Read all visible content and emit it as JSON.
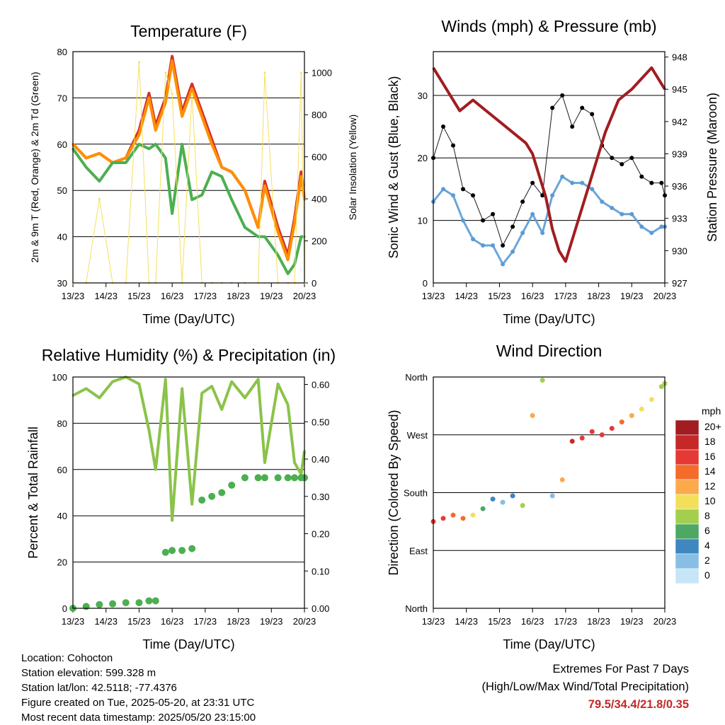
{
  "x_ticks": [
    "13/23",
    "14/23",
    "15/23",
    "16/23",
    "17/23",
    "18/23",
    "19/23",
    "20/23"
  ],
  "chart_data": [
    {
      "type": "line",
      "title": "Temperature (F)",
      "xlabel": "Time (Day/UTC)",
      "ylabel": "2m & 9m T (Red, Orange) & 2m Td (Green)",
      "ylabel_right": "Solar Insolation (Yellow)",
      "ylim": [
        30,
        80
      ],
      "y_ticks": [
        30,
        40,
        50,
        60,
        70,
        80
      ],
      "y2lim": [
        0,
        1100
      ],
      "y2_ticks": [
        0,
        200,
        400,
        600,
        800,
        1000
      ],
      "grid": true,
      "x_day": [
        0,
        0.4,
        0.8,
        1.2,
        1.6,
        2.0,
        2.3,
        2.5,
        2.8,
        3.0,
        3.3,
        3.6,
        3.9,
        4.2,
        4.5,
        4.8,
        5.2,
        5.6,
        5.8,
        6.2,
        6.5,
        6.7,
        6.9,
        7.0
      ],
      "series": [
        {
          "color": "#d32f2f",
          "y": [
            60,
            57,
            58,
            56,
            57,
            63,
            71,
            64,
            70,
            79,
            67,
            73,
            67,
            61,
            55,
            54,
            50,
            42,
            52,
            42,
            36,
            44,
            54,
            48
          ]
        },
        {
          "color": "#ff8f00",
          "y": [
            60,
            57,
            58,
            56,
            57,
            62,
            70,
            63,
            69,
            78,
            66,
            72,
            66,
            60,
            55,
            54,
            50,
            42,
            51,
            41,
            35,
            43,
            53,
            48
          ]
        },
        {
          "color": "#4caf50",
          "y": [
            59,
            55,
            52,
            56,
            56,
            60,
            59,
            60,
            57,
            45,
            60,
            48,
            49,
            54,
            53,
            48,
            42,
            40,
            40,
            36,
            32,
            34,
            40,
            40
          ]
        },
        {
          "color": "#f6e05e",
          "axis": "right",
          "y": [
            0,
            0,
            400,
            0,
            0,
            1050,
            0,
            0,
            1000,
            900,
            0,
            900,
            0,
            0,
            0,
            0,
            0,
            0,
            1000,
            0,
            0,
            0,
            1000,
            0
          ]
        }
      ]
    },
    {
      "type": "scatter",
      "title": "Winds (mph) & Pressure (mb)",
      "xlabel": "Time (Day/UTC)",
      "ylabel": "Sonic Wind & Gust (Blue, Black)",
      "ylabel_right": "Station Pressure (Maroon)",
      "ylim": [
        0,
        37
      ],
      "y_ticks": [
        0,
        10,
        20,
        30
      ],
      "y2lim": [
        927,
        948.5
      ],
      "y2_ticks": [
        927,
        930,
        933,
        936,
        939,
        942,
        945,
        948
      ],
      "grid": true,
      "series": [
        {
          "color": "#000000",
          "x": [
            0,
            0.3,
            0.6,
            0.9,
            1.2,
            1.5,
            1.8,
            2.1,
            2.4,
            2.7,
            3.0,
            3.3,
            3.6,
            3.9,
            4.2,
            4.5,
            4.8,
            5.1,
            5.4,
            5.7,
            6.0,
            6.3,
            6.6,
            6.9,
            7.0
          ],
          "y": [
            20,
            25,
            22,
            15,
            14,
            10,
            11,
            6,
            9,
            13,
            16,
            14,
            28,
            30,
            25,
            28,
            27,
            22,
            20,
            19,
            20,
            17,
            16,
            16,
            14
          ]
        },
        {
          "color": "#5a9bd5",
          "x": [
            0,
            0.3,
            0.6,
            0.9,
            1.2,
            1.5,
            1.8,
            2.1,
            2.4,
            2.7,
            3.0,
            3.3,
            3.6,
            3.9,
            4.2,
            4.5,
            4.8,
            5.1,
            5.4,
            5.7,
            6.0,
            6.3,
            6.6,
            6.9,
            7.0
          ],
          "y": [
            13,
            15,
            14,
            10,
            7,
            6,
            6,
            3,
            5,
            8,
            11,
            8,
            14,
            17,
            16,
            16,
            15,
            13,
            12,
            11,
            11,
            9,
            8,
            9,
            9
          ]
        },
        {
          "color": "#a11d21",
          "axis": "right",
          "x": [
            0,
            0.4,
            0.8,
            1.2,
            1.6,
            2.0,
            2.4,
            2.8,
            3.0,
            3.2,
            3.4,
            3.6,
            3.8,
            4.0,
            4.3,
            4.6,
            4.9,
            5.2,
            5.6,
            6.0,
            6.3,
            6.6,
            6.8,
            7.0
          ],
          "y": [
            947,
            945,
            943,
            944,
            943,
            942,
            941,
            940,
            939,
            937,
            935,
            932,
            930,
            929,
            932,
            935,
            938,
            941,
            944,
            945,
            946,
            947,
            946,
            945
          ]
        }
      ]
    },
    {
      "type": "line",
      "title": "Relative Humidity (%) & Precipitation (in)",
      "xlabel": "Time (Day/UTC)",
      "ylabel": "Percent & Total Rainfall",
      "ylim": [
        0,
        100
      ],
      "y_ticks": [
        0,
        20,
        40,
        60,
        80,
        100
      ],
      "y2lim": [
        0,
        0.62
      ],
      "y2_ticks": [
        "0.00",
        "0.10",
        "0.20",
        "0.30",
        "0.40",
        "0.50",
        "0.60"
      ],
      "grid": true,
      "x_day": [
        0,
        0.4,
        0.8,
        1.2,
        1.6,
        2.0,
        2.3,
        2.5,
        2.8,
        3.0,
        3.3,
        3.6,
        3.9,
        4.2,
        4.5,
        4.8,
        5.2,
        5.6,
        5.8,
        6.2,
        6.5,
        6.7,
        6.9,
        7.0
      ],
      "series": [
        {
          "color": "#8bc34a",
          "y": [
            92,
            95,
            91,
            98,
            100,
            97,
            77,
            60,
            99,
            38,
            95,
            45,
            93,
            96,
            86,
            98,
            91,
            99,
            63,
            97,
            88,
            63,
            58,
            68
          ]
        },
        {
          "color": "#4caf50",
          "axis": "right",
          "y": [
            0,
            0.005,
            0.01,
            0.012,
            0.015,
            0.015,
            0.02,
            0.02,
            0.15,
            0.155,
            0.155,
            0.16,
            0.29,
            0.3,
            0.31,
            0.33,
            0.35,
            0.35,
            0.35,
            0.35,
            0.35,
            0.35,
            0.35,
            0.35
          ]
        }
      ]
    },
    {
      "type": "scatter",
      "title": "Wind Direction",
      "xlabel": "Time (Day/UTC)",
      "ylabel": "Direction (Colored By Speed)",
      "ylim": [
        0,
        360
      ],
      "y_ticks": [
        {
          "v": 0,
          "label": "North"
        },
        {
          "v": 90,
          "label": "East"
        },
        {
          "v": 180,
          "label": "South"
        },
        {
          "v": 270,
          "label": "West"
        },
        {
          "v": 360,
          "label": "North"
        }
      ],
      "grid": true,
      "x": [
        0,
        0.3,
        0.6,
        0.9,
        1.2,
        1.5,
        1.8,
        2.1,
        2.4,
        2.7,
        3.0,
        3.3,
        3.6,
        3.9,
        4.2,
        4.5,
        4.8,
        5.1,
        5.4,
        5.7,
        6.0,
        6.3,
        6.6,
        6.9,
        7.0
      ],
      "y": [
        135,
        140,
        145,
        140,
        145,
        155,
        170,
        165,
        175,
        160,
        300,
        355,
        175,
        200,
        260,
        265,
        275,
        270,
        280,
        290,
        300,
        310,
        325,
        345,
        350
      ],
      "speed": [
        17,
        16,
        14,
        15,
        10,
        6,
        4,
        3,
        4,
        8,
        12,
        8,
        3,
        12,
        18,
        17,
        16,
        16,
        16,
        15,
        12,
        11,
        10,
        8,
        8
      ],
      "legend": {
        "title": "mph",
        "labels": [
          "20+",
          "18",
          "16",
          "14",
          "12",
          "10",
          "8",
          "6",
          "4",
          "2",
          "0"
        ],
        "colors": [
          "#a11d21",
          "#c62828",
          "#e53935",
          "#f36c2a",
          "#fba94b",
          "#f2e05b",
          "#a4cf4e",
          "#4ca862",
          "#3f87c0",
          "#88bde6",
          "#c6e6f7"
        ]
      }
    }
  ],
  "info_lines": [
    "Location: Cohocton",
    "Station elevation: 599.328 m",
    "Station lat/lon: 42.5118; -77.4376",
    "Figure created on Tue, 2025-05-20, at 23:31 UTC",
    "Most recent data timestamp: 2025/05/20 23:15:00"
  ],
  "extremes": {
    "line1": "Extremes For Past 7 Days",
    "line2": "(High/Low/Max Wind/Total Precipitation)",
    "value": "79.5/34.4/21.8/0.35"
  }
}
